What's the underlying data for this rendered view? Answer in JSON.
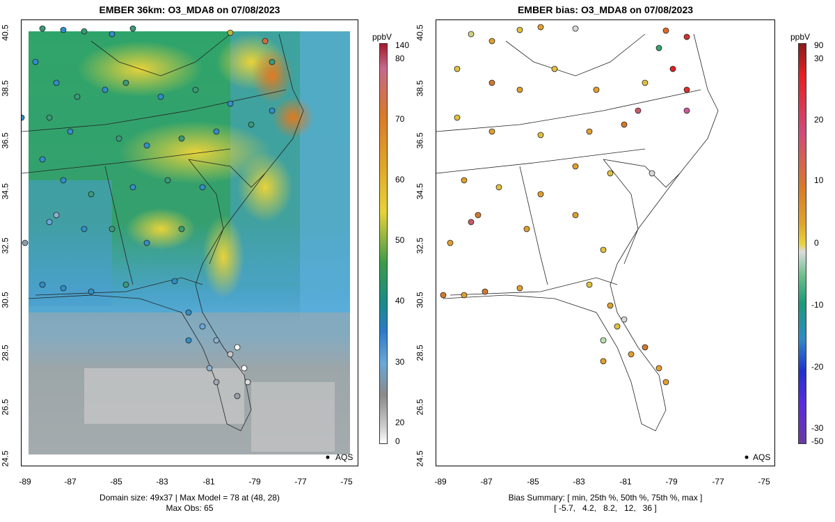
{
  "left_panel": {
    "title": "EMBER 36km: O3_MDA8 on 07/08/2023",
    "x_ticks": [
      "-89",
      "-87",
      "-85",
      "-83",
      "-81",
      "-79",
      "-77",
      "-75"
    ],
    "y_ticks": [
      "40.5",
      "38.5",
      "36.5",
      "34.5",
      "32.5",
      "30.5",
      "28.5",
      "26.5",
      "24.5"
    ],
    "footer_line1": "Domain size: 49x37 | Max Model = 78 at (48, 28)",
    "footer_line2": "Max Obs: 65",
    "legend_label": "AQS",
    "colorbar_unit": "ppbV",
    "colorbar_labels": [
      "140",
      "80",
      "70",
      "60",
      "50",
      "40",
      "30",
      "20",
      "0"
    ]
  },
  "right_panel": {
    "title": "EMBER bias: O3_MDA8 on 07/08/2023",
    "x_ticks": [
      "-89",
      "-87",
      "-85",
      "-83",
      "-81",
      "-79",
      "-77",
      "-75"
    ],
    "y_ticks": [
      "40.5",
      "38.5",
      "36.5",
      "34.5",
      "32.5",
      "30.5",
      "28.5",
      "26.5",
      "24.5"
    ],
    "footer_line1": "Bias Summary: [ min, 25th %, 50th %, 75th %, max ]",
    "footer_line2": "[ -5.7,   4.2,   8.2,   12,   36 ]",
    "legend_label": "AQS",
    "colorbar_unit": "ppbV",
    "colorbar_labels": [
      "90",
      "30",
      "20",
      "10",
      "0",
      "-10",
      "-20",
      "-30",
      "-50"
    ]
  }
}
